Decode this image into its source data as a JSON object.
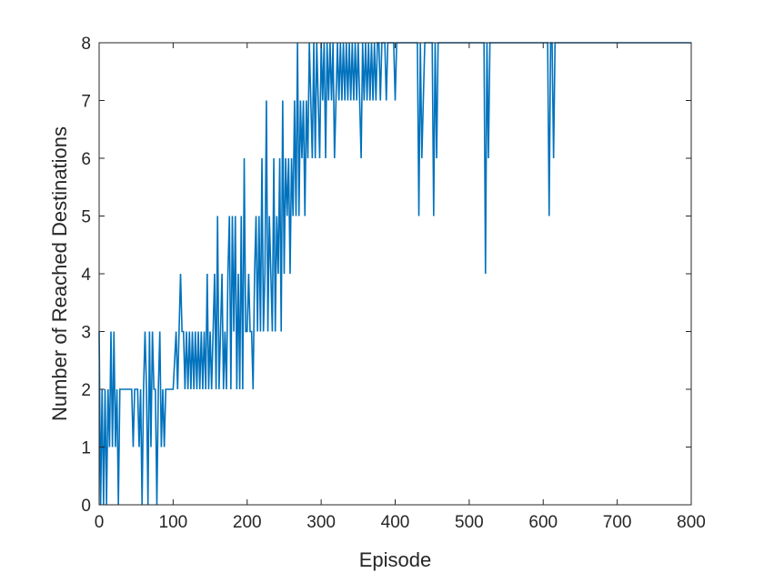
{
  "chart_data": {
    "type": "line",
    "xlabel": "Episode",
    "ylabel": "Number of Reached Destinations",
    "xlim": [
      0,
      800
    ],
    "ylim": [
      0,
      8
    ],
    "xticks": [
      0,
      100,
      200,
      300,
      400,
      500,
      600,
      700,
      800
    ],
    "yticks": [
      0,
      1,
      2,
      3,
      4,
      5,
      6,
      7,
      8
    ],
    "grid": false,
    "line_color": "#0072BD",
    "series": [
      {
        "points": [
          [
            0,
            3
          ],
          [
            2,
            0
          ],
          [
            4,
            2
          ],
          [
            6,
            0
          ],
          [
            8,
            2
          ],
          [
            10,
            0
          ],
          [
            12,
            2
          ],
          [
            14,
            1
          ],
          [
            16,
            3
          ],
          [
            18,
            1
          ],
          [
            20,
            3
          ],
          [
            22,
            1
          ],
          [
            24,
            2
          ],
          [
            26,
            0
          ],
          [
            28,
            2
          ],
          [
            30,
            2
          ],
          [
            40,
            2
          ],
          [
            44,
            2
          ],
          [
            46,
            1
          ],
          [
            48,
            2
          ],
          [
            52,
            2
          ],
          [
            54,
            1
          ],
          [
            56,
            2
          ],
          [
            58,
            0
          ],
          [
            60,
            2
          ],
          [
            62,
            3
          ],
          [
            64,
            2
          ],
          [
            66,
            0
          ],
          [
            68,
            3
          ],
          [
            70,
            1
          ],
          [
            72,
            3
          ],
          [
            74,
            2
          ],
          [
            76,
            2
          ],
          [
            78,
            0
          ],
          [
            80,
            2
          ],
          [
            82,
            3
          ],
          [
            84,
            1
          ],
          [
            86,
            2
          ],
          [
            88,
            1
          ],
          [
            90,
            2
          ],
          [
            95,
            2
          ],
          [
            100,
            2
          ],
          [
            104,
            3
          ],
          [
            106,
            2
          ],
          [
            108,
            3
          ],
          [
            110,
            4
          ],
          [
            112,
            3
          ],
          [
            114,
            3
          ],
          [
            116,
            2
          ],
          [
            118,
            3
          ],
          [
            120,
            2
          ],
          [
            122,
            3
          ],
          [
            124,
            2
          ],
          [
            126,
            3
          ],
          [
            128,
            2
          ],
          [
            130,
            3
          ],
          [
            132,
            2
          ],
          [
            134,
            3
          ],
          [
            136,
            2
          ],
          [
            138,
            3
          ],
          [
            140,
            2
          ],
          [
            142,
            3
          ],
          [
            144,
            2
          ],
          [
            146,
            4
          ],
          [
            148,
            2
          ],
          [
            150,
            3
          ],
          [
            152,
            2
          ],
          [
            154,
            3
          ],
          [
            156,
            4
          ],
          [
            158,
            2
          ],
          [
            160,
            5
          ],
          [
            162,
            2
          ],
          [
            164,
            3
          ],
          [
            166,
            4
          ],
          [
            168,
            2
          ],
          [
            170,
            3
          ],
          [
            172,
            2
          ],
          [
            174,
            4
          ],
          [
            176,
            5
          ],
          [
            178,
            2
          ],
          [
            180,
            5
          ],
          [
            182,
            3
          ],
          [
            184,
            5
          ],
          [
            186,
            2
          ],
          [
            188,
            4
          ],
          [
            190,
            2
          ],
          [
            192,
            5
          ],
          [
            194,
            2
          ],
          [
            196,
            6
          ],
          [
            198,
            3
          ],
          [
            200,
            3
          ],
          [
            202,
            4
          ],
          [
            204,
            3
          ],
          [
            206,
            3
          ],
          [
            208,
            2
          ],
          [
            210,
            4
          ],
          [
            212,
            5
          ],
          [
            214,
            3
          ],
          [
            216,
            5
          ],
          [
            218,
            3
          ],
          [
            220,
            6
          ],
          [
            222,
            3
          ],
          [
            224,
            4
          ],
          [
            226,
            7
          ],
          [
            228,
            3
          ],
          [
            230,
            5
          ],
          [
            232,
            4
          ],
          [
            234,
            3
          ],
          [
            236,
            6
          ],
          [
            238,
            3
          ],
          [
            240,
            5
          ],
          [
            242,
            4
          ],
          [
            244,
            6
          ],
          [
            246,
            3
          ],
          [
            248,
            7
          ],
          [
            250,
            4
          ],
          [
            252,
            6
          ],
          [
            254,
            5
          ],
          [
            256,
            6
          ],
          [
            258,
            4
          ],
          [
            260,
            6
          ],
          [
            262,
            5
          ],
          [
            264,
            7
          ],
          [
            266,
            5
          ],
          [
            268,
            8
          ],
          [
            270,
            5
          ],
          [
            272,
            7
          ],
          [
            274,
            6
          ],
          [
            276,
            7
          ],
          [
            278,
            5
          ],
          [
            280,
            7
          ],
          [
            282,
            6
          ],
          [
            284,
            8
          ],
          [
            286,
            7
          ],
          [
            288,
            6
          ],
          [
            290,
            8
          ],
          [
            292,
            6
          ],
          [
            294,
            8
          ],
          [
            296,
            7
          ],
          [
            298,
            6
          ],
          [
            300,
            8
          ],
          [
            302,
            7
          ],
          [
            304,
            8
          ],
          [
            306,
            6
          ],
          [
            308,
            8
          ],
          [
            310,
            7
          ],
          [
            312,
            8
          ],
          [
            314,
            7
          ],
          [
            316,
            8
          ],
          [
            318,
            6
          ],
          [
            320,
            7
          ],
          [
            322,
            8
          ],
          [
            324,
            7
          ],
          [
            326,
            8
          ],
          [
            328,
            7
          ],
          [
            330,
            8
          ],
          [
            332,
            7
          ],
          [
            334,
            8
          ],
          [
            336,
            7
          ],
          [
            338,
            8
          ],
          [
            340,
            7
          ],
          [
            342,
            8
          ],
          [
            344,
            7
          ],
          [
            346,
            8
          ],
          [
            348,
            7
          ],
          [
            350,
            8
          ],
          [
            352,
            7
          ],
          [
            354,
            6
          ],
          [
            356,
            8
          ],
          [
            358,
            7
          ],
          [
            360,
            8
          ],
          [
            362,
            7
          ],
          [
            364,
            8
          ],
          [
            366,
            7
          ],
          [
            368,
            8
          ],
          [
            370,
            7
          ],
          [
            372,
            8
          ],
          [
            374,
            7
          ],
          [
            376,
            8
          ],
          [
            378,
            8
          ],
          [
            380,
            7
          ],
          [
            382,
            8
          ],
          [
            384,
            8
          ],
          [
            386,
            8
          ],
          [
            388,
            7
          ],
          [
            390,
            8
          ],
          [
            395,
            8
          ],
          [
            398,
            8
          ],
          [
            400,
            7
          ],
          [
            402,
            8
          ],
          [
            425,
            8
          ],
          [
            430,
            8
          ],
          [
            432,
            5
          ],
          [
            434,
            8
          ],
          [
            436,
            6
          ],
          [
            438,
            7
          ],
          [
            440,
            8
          ],
          [
            448,
            8
          ],
          [
            450,
            8
          ],
          [
            452,
            5
          ],
          [
            454,
            8
          ],
          [
            456,
            6
          ],
          [
            458,
            8
          ],
          [
            460,
            8
          ],
          [
            518,
            8
          ],
          [
            520,
            8
          ],
          [
            522,
            4
          ],
          [
            524,
            8
          ],
          [
            526,
            6
          ],
          [
            528,
            8
          ],
          [
            530,
            8
          ],
          [
            603,
            8
          ],
          [
            606,
            8
          ],
          [
            608,
            5
          ],
          [
            610,
            8
          ],
          [
            612,
            8
          ],
          [
            614,
            6
          ],
          [
            616,
            8
          ],
          [
            620,
            8
          ],
          [
            800,
            8
          ]
        ]
      }
    ]
  }
}
